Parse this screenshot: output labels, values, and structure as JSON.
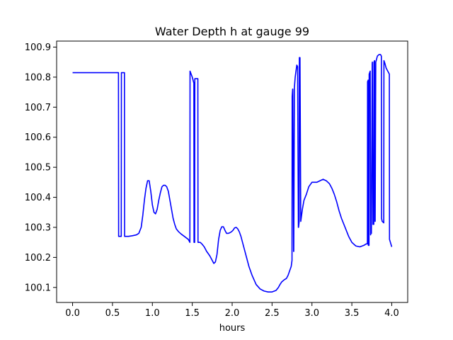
{
  "chart_data": {
    "type": "line",
    "title": "Water Depth h at gauge 99",
    "xlabel": "hours",
    "ylabel": "",
    "xlim": [
      -0.2,
      4.2
    ],
    "ylim": [
      100.05,
      100.92
    ],
    "xticks": [
      0.0,
      0.5,
      1.0,
      1.5,
      2.0,
      2.5,
      3.0,
      3.5,
      4.0
    ],
    "xtick_labels": [
      "0.0",
      "0.5",
      "1.0",
      "1.5",
      "2.0",
      "2.5",
      "3.0",
      "3.5",
      "4.0"
    ],
    "yticks": [
      100.1,
      100.2,
      100.3,
      100.4,
      100.5,
      100.6,
      100.7,
      100.8,
      100.9
    ],
    "ytick_labels": [
      "100.1",
      "100.2",
      "100.3",
      "100.4",
      "100.5",
      "100.6",
      "100.7",
      "100.8",
      "100.9"
    ],
    "grid": false,
    "line_color": "#0000ff",
    "series": [
      {
        "x": [
          0.0,
          0.15,
          0.3,
          0.45,
          0.575,
          0.577,
          0.61,
          0.612,
          0.64,
          0.65,
          0.652,
          0.7,
          0.75,
          0.8,
          0.83,
          0.86,
          0.88,
          0.9,
          0.92,
          0.94,
          0.96,
          0.98,
          1.0,
          1.02,
          1.04,
          1.06,
          1.08,
          1.1,
          1.12,
          1.14,
          1.16,
          1.18,
          1.2,
          1.22,
          1.24,
          1.26,
          1.28,
          1.3,
          1.33,
          1.36,
          1.4,
          1.45,
          1.47,
          1.472,
          1.5,
          1.52,
          1.522,
          1.53,
          1.532,
          1.55,
          1.57,
          1.572,
          1.6,
          1.62,
          1.65,
          1.68,
          1.72,
          1.75,
          1.77,
          1.79,
          1.81,
          1.83,
          1.85,
          1.87,
          1.89,
          1.91,
          1.93,
          1.95,
          1.97,
          1.99,
          2.01,
          2.03,
          2.05,
          2.07,
          2.09,
          2.11,
          2.13,
          2.15,
          2.18,
          2.21,
          2.25,
          2.3,
          2.35,
          2.4,
          2.45,
          2.5,
          2.55,
          2.58,
          2.6,
          2.62,
          2.65,
          2.68,
          2.7,
          2.72,
          2.74,
          2.75,
          2.752,
          2.758,
          2.76,
          2.77,
          2.772,
          2.78,
          2.79,
          2.8,
          2.81,
          2.82,
          2.83,
          2.832,
          2.84,
          2.842,
          2.85,
          2.86,
          2.88,
          2.9,
          2.93,
          2.96,
          3.0,
          3.03,
          3.06,
          3.1,
          3.14,
          3.18,
          3.22,
          3.25,
          3.28,
          3.31,
          3.34,
          3.37,
          3.4,
          3.43,
          3.46,
          3.5,
          3.55,
          3.6,
          3.65,
          3.68,
          3.695,
          3.697,
          3.705,
          3.707,
          3.715,
          3.717,
          3.73,
          3.735,
          3.737,
          3.745,
          3.755,
          3.757,
          3.765,
          3.775,
          3.777,
          3.785,
          3.79,
          3.792,
          3.8,
          3.82,
          3.84,
          3.86,
          3.87,
          3.872,
          3.88,
          3.9,
          3.902,
          3.915,
          3.93,
          3.97,
          3.972,
          4.0
        ],
        "y": [
          100.815,
          100.815,
          100.815,
          100.815,
          100.815,
          100.27,
          100.27,
          100.815,
          100.815,
          100.815,
          100.27,
          100.27,
          100.272,
          100.275,
          100.28,
          100.3,
          100.34,
          100.39,
          100.43,
          100.455,
          100.455,
          100.42,
          100.375,
          100.35,
          100.345,
          100.36,
          100.39,
          100.415,
          100.435,
          100.44,
          100.44,
          100.435,
          100.42,
          100.39,
          100.36,
          100.33,
          100.31,
          100.295,
          100.285,
          100.278,
          100.27,
          100.26,
          100.25,
          100.82,
          100.8,
          100.78,
          100.25,
          100.25,
          100.795,
          100.795,
          100.795,
          100.25,
          100.25,
          100.245,
          100.235,
          100.22,
          100.205,
          100.19,
          100.18,
          100.185,
          100.21,
          100.26,
          100.29,
          100.302,
          100.302,
          100.29,
          100.28,
          100.28,
          100.282,
          100.285,
          100.29,
          100.298,
          100.3,
          100.295,
          100.285,
          100.27,
          100.25,
          100.23,
          100.2,
          100.17,
          100.14,
          100.11,
          100.095,
          100.088,
          100.085,
          100.085,
          100.09,
          100.1,
          100.11,
          100.118,
          100.125,
          100.13,
          100.14,
          100.155,
          100.17,
          100.19,
          100.735,
          100.76,
          100.76,
          100.22,
          100.22,
          100.765,
          100.8,
          100.82,
          100.84,
          100.835,
          100.3,
          100.3,
          100.32,
          100.865,
          100.865,
          100.32,
          100.36,
          100.39,
          100.41,
          100.435,
          100.45,
          100.45,
          100.45,
          100.455,
          100.46,
          100.455,
          100.445,
          100.43,
          100.41,
          100.385,
          100.355,
          100.33,
          100.31,
          100.29,
          100.27,
          100.25,
          100.238,
          100.235,
          100.24,
          100.245,
          100.245,
          100.785,
          100.79,
          100.24,
          100.24,
          100.81,
          100.82,
          100.275,
          100.28,
          100.28,
          100.845,
          100.85,
          100.31,
          100.31,
          100.85,
          100.855,
          100.32,
          100.32,
          100.85,
          100.87,
          100.875,
          100.875,
          100.87,
          100.33,
          100.32,
          100.315,
          100.855,
          100.845,
          100.83,
          100.81,
          100.26,
          100.235
        ]
      }
    ]
  }
}
